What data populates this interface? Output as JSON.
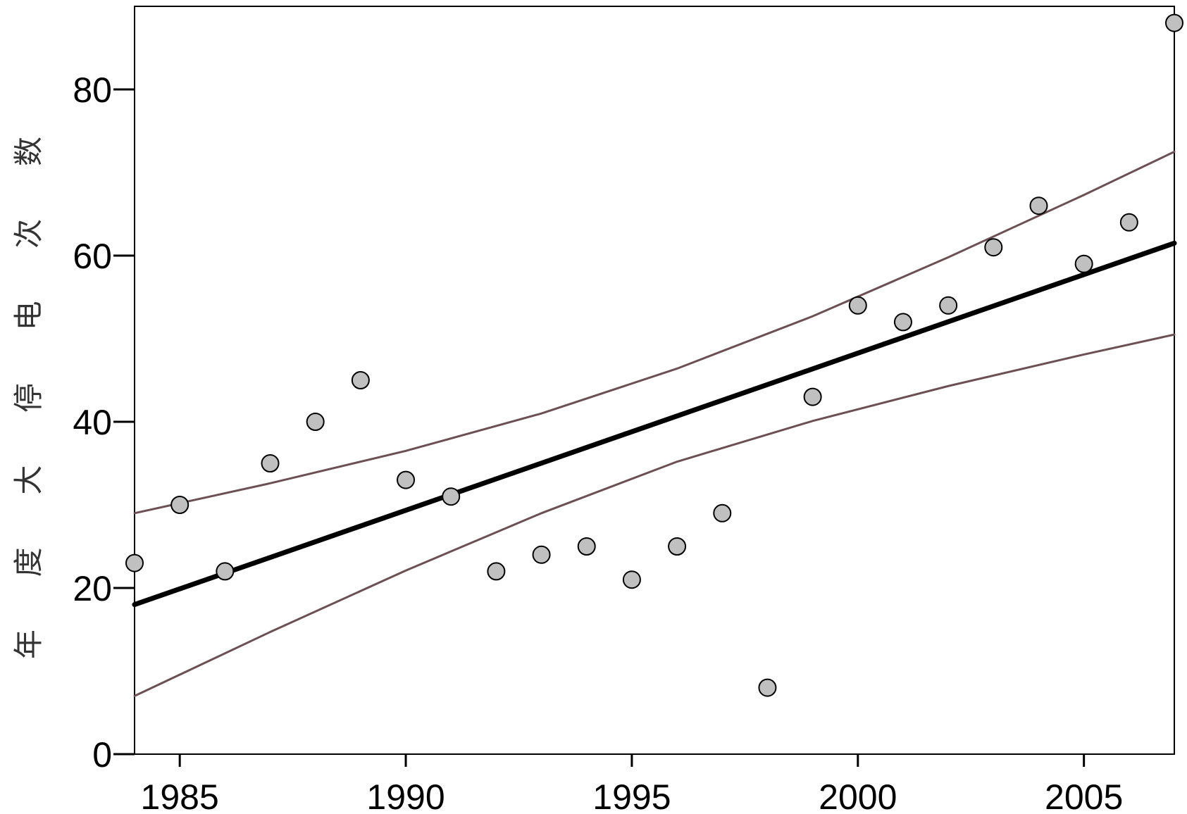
{
  "chart_data": {
    "type": "scatter",
    "y_label": "年度大停电次数",
    "x": [
      1984,
      1985,
      1986,
      1987,
      1988,
      1989,
      1990,
      1991,
      1992,
      1993,
      1994,
      1995,
      1996,
      1997,
      1998,
      1999,
      2000,
      2001,
      2002,
      2003,
      2004,
      2005,
      2006,
      2007
    ],
    "values": [
      23,
      30,
      22,
      35,
      40,
      45,
      33,
      31,
      22,
      24,
      25,
      21,
      25,
      29,
      8,
      43,
      54,
      52,
      54,
      61,
      66,
      59,
      64,
      88
    ],
    "point_color": "#c0c0c0",
    "lines": [
      {
        "x": [
          1984,
          1987,
          1990,
          1993,
          1996,
          1999,
          2002,
          2005,
          2007
        ],
        "values": [
          29.0,
          32.6,
          36.5,
          41.0,
          46.4,
          52.7,
          59.8,
          67.3,
          72.5
        ],
        "color": "#6b5055",
        "width": 3
      },
      {
        "x": [
          1984,
          1987,
          1990,
          1993,
          1996,
          1999,
          2002,
          2005,
          2007
        ],
        "values": [
          7.0,
          14.7,
          22.1,
          29.0,
          35.2,
          40.1,
          44.3,
          48.1,
          50.5
        ],
        "color": "#6b5055",
        "width": 3
      },
      {
        "x": [
          1984,
          2007
        ],
        "values": [
          18.0,
          61.5
        ],
        "color": "#000000",
        "width": 7
      }
    ],
    "xlim": [
      1984,
      2007
    ],
    "ylim": [
      0,
      90
    ],
    "xticks": [
      1985,
      1990,
      1995,
      2000,
      2005
    ],
    "yticks": [
      0,
      20,
      40,
      60,
      80
    ]
  }
}
